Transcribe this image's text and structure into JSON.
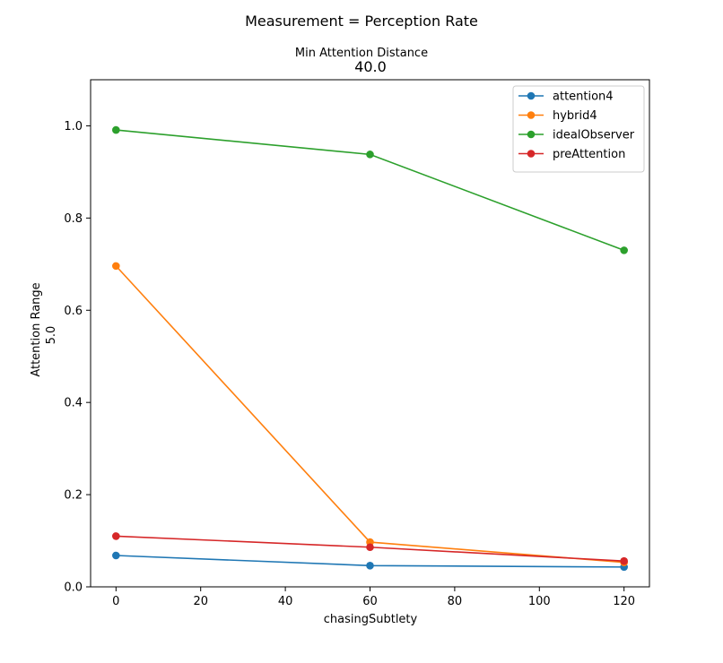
{
  "chart_data": {
    "type": "line",
    "suptitle": "Measurement = Perception Rate",
    "title_line1": "Min Attention Distance",
    "title_line2": "40.0",
    "xlabel": "chasingSubtlety",
    "ylabel_line1": "Attention Range",
    "ylabel_line2": "5.0",
    "xlim": [
      -6,
      126
    ],
    "ylim": [
      0.0,
      1.1
    ],
    "xticks": [
      0,
      20,
      40,
      60,
      80,
      100,
      120
    ],
    "yticks": [
      0.0,
      0.2,
      0.4,
      0.6,
      0.8,
      1.0
    ],
    "xtick_labels": [
      "0",
      "20",
      "40",
      "60",
      "80",
      "100",
      "120"
    ],
    "ytick_labels": [
      "0.0",
      "0.2",
      "0.4",
      "0.6",
      "0.8",
      "1.0"
    ],
    "grid": false,
    "legend_position": "top-right",
    "x": [
      0,
      60,
      120
    ],
    "series": [
      {
        "name": "attention4",
        "color": "#1f77b4",
        "values": [
          0.068,
          0.046,
          0.043
        ]
      },
      {
        "name": "hybrid4",
        "color": "#ff7f0e",
        "values": [
          0.696,
          0.097,
          0.053
        ]
      },
      {
        "name": "idealObserver",
        "color": "#2ca02c",
        "values": [
          0.991,
          0.938,
          0.73
        ]
      },
      {
        "name": "preAttention",
        "color": "#d62728",
        "values": [
          0.11,
          0.086,
          0.056
        ]
      }
    ]
  }
}
